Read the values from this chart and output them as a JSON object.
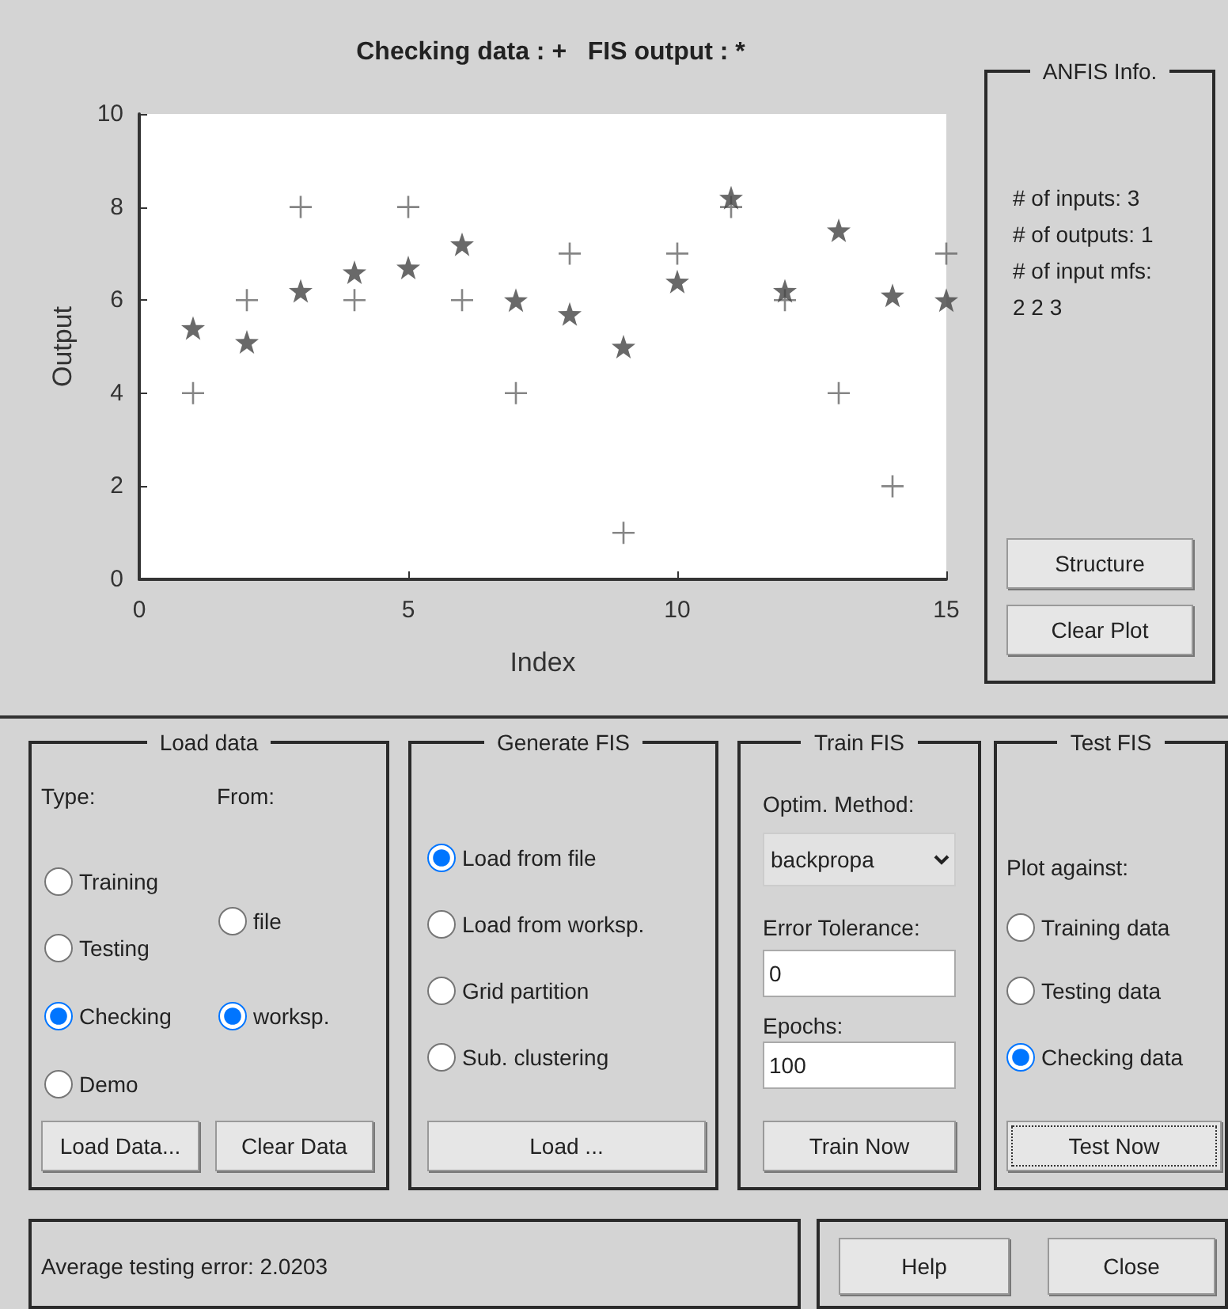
{
  "chart_data": [
    {
      "type": "scatter",
      "title": "Checking data : +   FIS output : *",
      "xlabel": "Index",
      "ylabel": "Output",
      "x": [
        1,
        2,
        3,
        4,
        5,
        6,
        7,
        8,
        9,
        10,
        11,
        12,
        13,
        14,
        15
      ],
      "xlim": [
        0,
        15
      ],
      "xticks": [
        0,
        5,
        10,
        15
      ],
      "ylim": [
        0,
        10
      ],
      "yticks": [
        0,
        2,
        4,
        6,
        8,
        10
      ],
      "series": [
        {
          "color": "#666666",
          "marker": "cross",
          "values": [
            4,
            6,
            8,
            6,
            8,
            6,
            4,
            7,
            1,
            7,
            8,
            6,
            4,
            2,
            7
          ]
        },
        {
          "color": "#444444",
          "marker": "star",
          "values": [
            5.4,
            5.1,
            6.2,
            6.6,
            6.7,
            7.2,
            6.0,
            5.7,
            5.0,
            6.4,
            8.2,
            6.2,
            7.5,
            6.1,
            6.0
          ]
        }
      ]
    },
    {
      "type": "other",
      "title": "ANFIS Info.",
      "annotations": [
        "# of inputs: 3",
        "# of outputs: 1",
        "# of input mfs:",
        "2 2 3",
        "Structure",
        "Clear Plot"
      ]
    },
    {
      "type": "other",
      "title": "Load data",
      "annotations": [
        "Type:",
        "From:",
        "Training",
        "Testing",
        "Checking",
        "Demo",
        "file",
        "worksp.",
        "Load Data...",
        "Clear Data"
      ]
    },
    {
      "type": "other",
      "title": "Generate FIS",
      "annotations": [
        "Load from file",
        "Load from worksp.",
        "Grid partition",
        "Sub. clustering",
        "Load ..."
      ]
    },
    {
      "type": "other",
      "title": "Train FIS",
      "annotations": [
        "Optim. Method:",
        "backpropa",
        "Error Tolerance:",
        "0",
        "Epochs:",
        "100",
        "Train Now"
      ]
    },
    {
      "type": "other",
      "title": "Test FIS",
      "annotations": [
        "Plot against:",
        "Training data",
        "Testing data",
        "Checking data",
        "Test Now"
      ]
    },
    {
      "type": "other",
      "annotations": [
        "Average testing error: 2.0203"
      ]
    },
    {
      "type": "other",
      "annotations": [
        "Help",
        "Close"
      ]
    }
  ]
}
